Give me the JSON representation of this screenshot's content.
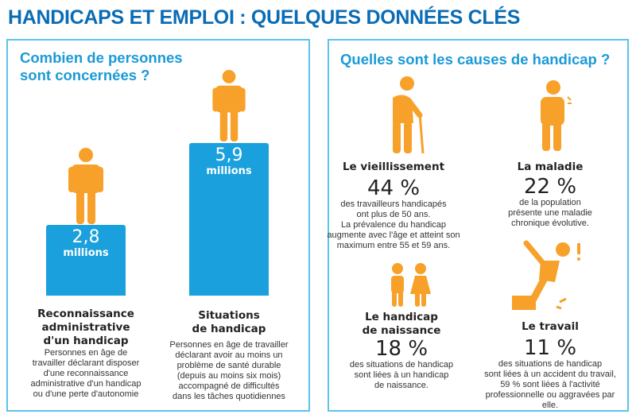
{
  "title": "HANDICAPS ET EMPLOI : QUELQUES DONNÉES CLÉS",
  "colors": {
    "title": "#0a6cb5",
    "accent": "#1aa0dc",
    "icon": "#f7a12a",
    "border": "#5cc3ea"
  },
  "left": {
    "heading_1": "Combien de personnes",
    "heading_2": "sont concernées ?",
    "items": [
      {
        "value": "2,8",
        "unit": "millions",
        "label_1": "Reconnaissance",
        "label_2": "administrative",
        "label_3": "d'un handicap",
        "desc": [
          "Personnes en âge de",
          "travailler déclarant disposer",
          "d'une reconnaissance",
          "administrative d'un handicap",
          "ou d'une perte d'autonomie"
        ]
      },
      {
        "value": "5,9",
        "unit": "millions",
        "label_1": "Situations",
        "label_2": "de handicap",
        "desc": [
          "Personnes en âge de travailler",
          "déclarant avoir au moins un",
          "problème de santé durable",
          "(depuis au moins six mois)",
          "accompagné de difficultés",
          "dans les tâches quotidiennes"
        ]
      }
    ]
  },
  "right": {
    "heading": "Quelles sont les causes de handicap ?",
    "causes": [
      {
        "label": "Le vieillissement",
        "pct": "44 %",
        "desc": [
          "des travailleurs handicapés",
          "ont plus de 50 ans.",
          "La prévalence du handicap",
          "augmente avec l'âge et atteint son",
          "maximum entre 55 et 59 ans."
        ]
      },
      {
        "label": "La maladie",
        "pct": "22 %",
        "desc": [
          "de la population",
          "présente une maladie",
          "chronique évolutive."
        ]
      },
      {
        "label_1": "Le handicap",
        "label_2": "de naissance",
        "pct": "18 %",
        "desc": [
          "des situations de handicap",
          "sont liées à un handicap",
          "de naissance."
        ]
      },
      {
        "label": "Le travail",
        "pct": "11 %",
        "desc": [
          "des situations de handicap",
          "sont liées à un accident du travail,",
          "59 % sont liées à l'activité",
          "professionnelle ou aggravées par",
          "elle."
        ]
      }
    ]
  }
}
